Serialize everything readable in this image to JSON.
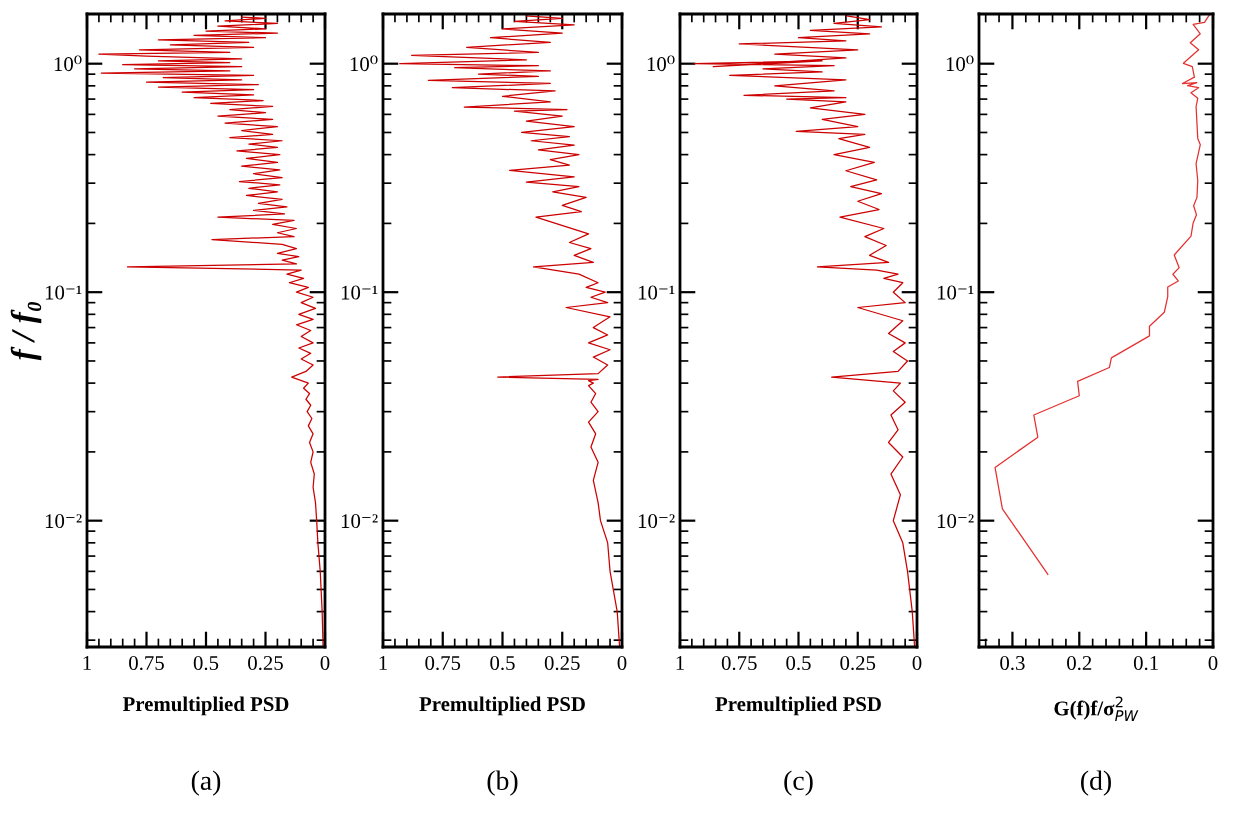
{
  "chart_data": [
    {
      "type": "line",
      "xlabel": "Premultiplied PSD",
      "ylabel": "f / f₀",
      "annotations": [
        "(a)"
      ],
      "log": "y",
      "xlim": [
        1,
        0
      ],
      "xticks": [
        1,
        0.75,
        0.5,
        0.25,
        0
      ],
      "ylim": [
        0.0028,
        1.65
      ],
      "yticks": [
        {
          "value": 0.01,
          "label": "10⁻²"
        },
        {
          "value": 0.1,
          "label": "10⁻¹"
        },
        {
          "value": 1,
          "label": "10⁰"
        }
      ],
      "series": [
        {
          "color": "#cc0000",
          "x": [
            0.008,
            0.012,
            0.02,
            0.03,
            0.035,
            0.04,
            0.05,
            0.045,
            0.06,
            0.05,
            0.065,
            0.05,
            0.07,
            0.055,
            0.075,
            0.06,
            0.08,
            0.065,
            0.09,
            0.07,
            0.14,
            0.08,
            0.05,
            0.1,
            0.06,
            0.11,
            0.05,
            0.1,
            0.06,
            0.12,
            0.05,
            0.11,
            0.04,
            0.1,
            0.05,
            0.12,
            0.07,
            0.15,
            0.09,
            0.16,
            0.1,
            0.83,
            0.12,
            0.18,
            0.11,
            0.2,
            0.12,
            0.18,
            0.475,
            0.13,
            0.2,
            0.12,
            0.22,
            0.13,
            0.45,
            0.17,
            0.3,
            0.16,
            0.28,
            0.18,
            0.33,
            0.2,
            0.32,
            0.19,
            0.36,
            0.18,
            0.3,
            0.19,
            0.35,
            0.2,
            0.33,
            0.19,
            0.37,
            0.2,
            0.32,
            0.18,
            0.4,
            0.22,
            0.35,
            0.2,
            0.42,
            0.22,
            0.45,
            0.25,
            0.4,
            0.22,
            0.48,
            0.26,
            0.55,
            0.3,
            0.6,
            0.3,
            0.7,
            0.28,
            0.75,
            0.35,
            0.68,
            0.3,
            0.94,
            0.4,
            0.8,
            0.35,
            0.85,
            0.4,
            0.7,
            0.35,
            0.75,
            0.95,
            0.4,
            0.78,
            0.3,
            0.65,
            0.32,
            0.7,
            0.25,
            0.55,
            0.2,
            0.5,
            0.25,
            0.45,
            0.2,
            0.42,
            0.25,
            0.35
          ],
          "values": [
            0.0028,
            0.004,
            0.006,
            0.008,
            0.01,
            0.012,
            0.014,
            0.016,
            0.018,
            0.02,
            0.022,
            0.024,
            0.026,
            0.028,
            0.03,
            0.032,
            0.034,
            0.036,
            0.038,
            0.04,
            0.0425,
            0.045,
            0.048,
            0.051,
            0.054,
            0.057,
            0.06,
            0.064,
            0.068,
            0.072,
            0.076,
            0.08,
            0.085,
            0.09,
            0.095,
            0.1,
            0.105,
            0.11,
            0.115,
            0.12,
            0.125,
            0.129,
            0.133,
            0.138,
            0.143,
            0.148,
            0.155,
            0.162,
            0.17,
            0.175,
            0.182,
            0.19,
            0.198,
            0.206,
            0.213,
            0.22,
            0.228,
            0.236,
            0.245,
            0.255,
            0.265,
            0.275,
            0.285,
            0.295,
            0.305,
            0.317,
            0.33,
            0.343,
            0.356,
            0.37,
            0.385,
            0.4,
            0.415,
            0.43,
            0.445,
            0.46,
            0.475,
            0.49,
            0.51,
            0.53,
            0.55,
            0.57,
            0.59,
            0.61,
            0.63,
            0.65,
            0.67,
            0.69,
            0.71,
            0.73,
            0.75,
            0.77,
            0.79,
            0.81,
            0.83,
            0.85,
            0.87,
            0.89,
            0.91,
            0.93,
            0.95,
            0.97,
            0.99,
            1.01,
            1.03,
            1.05,
            1.08,
            1.1,
            1.12,
            1.15,
            1.18,
            1.21,
            1.24,
            1.27,
            1.3,
            1.33,
            1.36,
            1.39,
            1.42,
            1.46,
            1.5,
            1.54,
            1.58,
            1.6
          ]
        }
      ]
    },
    {
      "type": "line",
      "xlabel": "Premultiplied PSD",
      "annotations": [
        "(b)"
      ],
      "log": "y",
      "xlim": [
        1,
        0
      ],
      "xticks": [
        1,
        0.75,
        0.5,
        0.25,
        0
      ],
      "ylim": [
        0.0028,
        1.65
      ],
      "yticks": [
        {
          "value": 0.01,
          "label": "10⁻²"
        },
        {
          "value": 0.1,
          "label": "10⁻¹"
        },
        {
          "value": 1,
          "label": "10⁰"
        }
      ],
      "series": [
        {
          "color": "#cc0000",
          "x": [
            0.01,
            0.02,
            0.05,
            0.06,
            0.09,
            0.1,
            0.12,
            0.1,
            0.13,
            0.11,
            0.14,
            0.1,
            0.13,
            0.11,
            0.14,
            0.12,
            0.14,
            0.1,
            0.52,
            0.1,
            0.06,
            0.12,
            0.05,
            0.14,
            0.06,
            0.12,
            0.05,
            0.234,
            0.06,
            0.13,
            0.07,
            0.15,
            0.1,
            0.18,
            0.37,
            0.12,
            0.2,
            0.13,
            0.22,
            0.14,
            0.36,
            0.17,
            0.25,
            0.15,
            0.29,
            0.18,
            0.4,
            0.2,
            0.47,
            0.22,
            0.3,
            0.18,
            0.35,
            0.2,
            0.38,
            0.22,
            0.42,
            0.2,
            0.4,
            0.25,
            0.45,
            0.23,
            0.66,
            0.3,
            0.5,
            0.28,
            0.71,
            0.3,
            0.81,
            0.35,
            0.6,
            0.3,
            0.7,
            0.35,
            0.93,
            0.4,
            0.88,
            0.35,
            0.65,
            0.3,
            0.55,
            0.25,
            0.5,
            0.2,
            0.45,
            0.25,
            0.4
          ],
          "values": [
            0.0028,
            0.004,
            0.006,
            0.008,
            0.01,
            0.012,
            0.015,
            0.018,
            0.021,
            0.024,
            0.027,
            0.03,
            0.033,
            0.036,
            0.039,
            0.04,
            0.041,
            0.0415,
            0.0425,
            0.044,
            0.048,
            0.052,
            0.056,
            0.06,
            0.065,
            0.07,
            0.078,
            0.0857,
            0.09,
            0.095,
            0.1,
            0.105,
            0.11,
            0.12,
            0.129,
            0.135,
            0.145,
            0.155,
            0.165,
            0.18,
            0.213,
            0.225,
            0.24,
            0.26,
            0.275,
            0.29,
            0.303,
            0.32,
            0.341,
            0.36,
            0.38,
            0.4,
            0.42,
            0.44,
            0.46,
            0.48,
            0.5,
            0.53,
            0.56,
            0.59,
            0.62,
            0.63,
            0.646,
            0.68,
            0.72,
            0.76,
            0.785,
            0.82,
            0.845,
            0.88,
            0.9,
            0.93,
            0.96,
            0.98,
            1.0,
            1.04,
            1.087,
            1.12,
            1.18,
            1.24,
            1.3,
            1.36,
            1.42,
            1.48,
            1.53,
            1.58,
            1.62
          ]
        }
      ]
    },
    {
      "type": "line",
      "xlabel": "Premultiplied PSD",
      "annotations": [
        "(c)"
      ],
      "log": "y",
      "xlim": [
        1,
        0
      ],
      "xticks": [
        1,
        0.75,
        0.5,
        0.25,
        0
      ],
      "ylim": [
        0.0028,
        1.65
      ],
      "yticks": [
        {
          "value": 0.01,
          "label": "10⁻²"
        },
        {
          "value": 0.1,
          "label": "10⁻¹"
        },
        {
          "value": 1,
          "label": "10⁰"
        }
      ],
      "series": [
        {
          "color": "#cc0000",
          "x": [
            0.01,
            0.02,
            0.04,
            0.06,
            0.1,
            0.07,
            0.11,
            0.06,
            0.12,
            0.08,
            0.11,
            0.05,
            0.1,
            0.07,
            0.36,
            0.08,
            0.04,
            0.1,
            0.05,
            0.12,
            0.06,
            0.25,
            0.05,
            0.1,
            0.06,
            0.14,
            0.08,
            0.17,
            0.42,
            0.12,
            0.2,
            0.13,
            0.22,
            0.14,
            0.325,
            0.16,
            0.25,
            0.15,
            0.28,
            0.17,
            0.3,
            0.18,
            0.35,
            0.2,
            0.33,
            0.22,
            0.51,
            0.25,
            0.4,
            0.22,
            0.45,
            0.3,
            0.55,
            0.3,
            0.73,
            0.35,
            0.6,
            0.3,
            0.79,
            0.4,
            0.65,
            0.35,
            0.94,
            0.4,
            0.86,
            0.3,
            0.6,
            0.25,
            0.75,
            0.3,
            0.5,
            0.2,
            0.45,
            0.15,
            0.35,
            0.2,
            0.3
          ],
          "values": [
            0.0028,
            0.004,
            0.006,
            0.008,
            0.01,
            0.013,
            0.016,
            0.019,
            0.022,
            0.025,
            0.029,
            0.033,
            0.037,
            0.04,
            0.0425,
            0.045,
            0.05,
            0.055,
            0.06,
            0.066,
            0.075,
            0.0857,
            0.09,
            0.1,
            0.11,
            0.115,
            0.12,
            0.125,
            0.129,
            0.135,
            0.145,
            0.16,
            0.175,
            0.19,
            0.213,
            0.23,
            0.25,
            0.27,
            0.29,
            0.31,
            0.34,
            0.37,
            0.4,
            0.43,
            0.47,
            0.49,
            0.506,
            0.53,
            0.57,
            0.6,
            0.64,
            0.68,
            0.7,
            0.71,
            0.727,
            0.76,
            0.8,
            0.85,
            0.889,
            0.92,
            0.95,
            0.98,
            1.0,
            1.03,
            0.97,
            1.06,
            1.1,
            1.15,
            1.22,
            1.26,
            1.3,
            1.35,
            1.4,
            1.45,
            1.5,
            1.56,
            1.62
          ]
        }
      ]
    },
    {
      "type": "line",
      "xlabel": "G(f)f/σ$^{2}$$_{PW}$",
      "annotations": [
        "(d)"
      ],
      "log": "y",
      "xlim": [
        0.35,
        0
      ],
      "xticks": [
        0.3,
        0.2,
        0.1,
        0
      ],
      "ylim": [
        0.0028,
        1.65
      ],
      "yticks": [
        {
          "value": 0.01,
          "label": "10⁻²"
        },
        {
          "value": 0.1,
          "label": "10⁻¹"
        },
        {
          "value": 1,
          "label": "10⁰"
        }
      ],
      "series": [
        {
          "color": "#e53030",
          "x": [
            0.247,
            0.315,
            0.326,
            0.262,
            0.268,
            0.2,
            0.2025,
            0.155,
            0.152,
            0.095,
            0.095,
            0.0728,
            0.0677,
            0.0677,
            0.0519,
            0.06,
            0.0506,
            0.058,
            0.0329,
            0.0297,
            0.0247,
            0.029,
            0.024,
            0.0228,
            0.0253,
            0.019,
            0.0228,
            0.0253,
            0.0228,
            0.033,
            0.0215,
            0.038,
            0.0241,
            0.0456,
            0.0278,
            0.031,
            0.0443,
            0.0215,
            0.034,
            0.019,
            0.0297,
            0.0127,
            0.0089,
            0.0044
          ],
          "values": [
            0.00582,
            0.01127,
            0.0171,
            0.0232,
            0.029,
            0.0352,
            0.0407,
            0.0468,
            0.0516,
            0.0644,
            0.071,
            0.0817,
            0.0957,
            0.1054,
            0.112,
            0.1198,
            0.128,
            0.1455,
            0.176,
            0.201,
            0.218,
            0.239,
            0.26,
            0.308,
            0.365,
            0.442,
            0.471,
            0.648,
            0.706,
            0.746,
            0.785,
            0.802,
            0.826,
            0.819,
            0.873,
            0.971,
            1.004,
            1.151,
            1.236,
            1.352,
            1.485,
            1.517,
            1.58,
            1.65
          ]
        }
      ]
    }
  ]
}
